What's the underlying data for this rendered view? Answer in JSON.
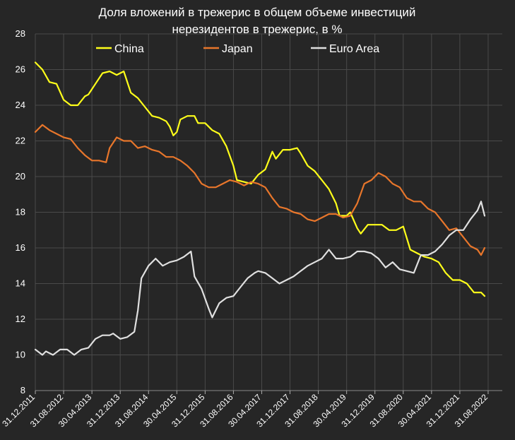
{
  "chart_data": {
    "type": "line",
    "title_line1": "Доля вложений в трежерис в общем объеме инвестиций",
    "title_line2": "нерезидентов в трежерис, в %",
    "xlabel": "",
    "ylabel": "",
    "ylim": [
      8,
      28
    ],
    "y_ticks": [
      8,
      10,
      12,
      14,
      16,
      18,
      20,
      22,
      24,
      26,
      28
    ],
    "x_tick_labels": [
      "31.12.2011",
      "31.08.2012",
      "30.04.2013",
      "31.12.2013",
      "31.08.2014",
      "30.04.2015",
      "31.12.2015",
      "31.08.2016",
      "30.04.2017",
      "31.12.2017",
      "31.08.2018",
      "30.04.2019",
      "31.12.2019",
      "31.08.2020",
      "30.04.2021",
      "31.12.2021",
      "31.08.2022"
    ],
    "x_months_per_tick": 8,
    "x_total_months": 132,
    "grid": true,
    "legend_position": "top",
    "series": [
      {
        "name": "China",
        "color": "#ffff1a",
        "points": [
          [
            0,
            26.4
          ],
          [
            2,
            26.0
          ],
          [
            4,
            25.3
          ],
          [
            6,
            25.2
          ],
          [
            8,
            24.3
          ],
          [
            10,
            24.0
          ],
          [
            12,
            24.0
          ],
          [
            14,
            24.5
          ],
          [
            15,
            24.6
          ],
          [
            17,
            25.2
          ],
          [
            19,
            25.8
          ],
          [
            21,
            25.9
          ],
          [
            23,
            25.7
          ],
          [
            25,
            25.9
          ],
          [
            27,
            24.7
          ],
          [
            29,
            24.4
          ],
          [
            31,
            23.9
          ],
          [
            33,
            23.4
          ],
          [
            35,
            23.3
          ],
          [
            37,
            23.1
          ],
          [
            38,
            22.8
          ],
          [
            39,
            22.3
          ],
          [
            40,
            22.5
          ],
          [
            41,
            23.2
          ],
          [
            43,
            23.4
          ],
          [
            45,
            23.4
          ],
          [
            46,
            23.0
          ],
          [
            48,
            23.0
          ],
          [
            50,
            22.6
          ],
          [
            52,
            22.4
          ],
          [
            54,
            21.7
          ],
          [
            56,
            20.6
          ],
          [
            57,
            19.8
          ],
          [
            59,
            19.7
          ],
          [
            61,
            19.6
          ],
          [
            63,
            20.1
          ],
          [
            65,
            20.4
          ],
          [
            67,
            21.4
          ],
          [
            68,
            21.0
          ],
          [
            70,
            21.5
          ],
          [
            72,
            21.5
          ],
          [
            74,
            21.6
          ],
          [
            75,
            21.3
          ],
          [
            77,
            20.6
          ],
          [
            79,
            20.3
          ],
          [
            81,
            19.8
          ],
          [
            83,
            19.3
          ],
          [
            85,
            18.5
          ],
          [
            86,
            17.8
          ],
          [
            88,
            17.8
          ],
          [
            89,
            18.0
          ],
          [
            91,
            17.1
          ],
          [
            92,
            16.8
          ],
          [
            94,
            17.3
          ],
          [
            96,
            17.3
          ],
          [
            98,
            17.3
          ],
          [
            100,
            17.0
          ],
          [
            102,
            17.0
          ],
          [
            104,
            17.2
          ],
          [
            106,
            15.9
          ],
          [
            108,
            15.7
          ],
          [
            110,
            15.5
          ],
          [
            112,
            15.4
          ],
          [
            114,
            15.2
          ],
          [
            116,
            14.6
          ],
          [
            118,
            14.2
          ],
          [
            120,
            14.2
          ],
          [
            122,
            14.0
          ],
          [
            124,
            13.5
          ],
          [
            126,
            13.5
          ],
          [
            127,
            13.3
          ]
        ]
      },
      {
        "name": "Japan",
        "color": "#e8762b",
        "points": [
          [
            0,
            22.5
          ],
          [
            2,
            22.9
          ],
          [
            4,
            22.6
          ],
          [
            6,
            22.4
          ],
          [
            8,
            22.2
          ],
          [
            10,
            22.1
          ],
          [
            12,
            21.6
          ],
          [
            14,
            21.2
          ],
          [
            16,
            20.9
          ],
          [
            18,
            20.9
          ],
          [
            20,
            20.8
          ],
          [
            21,
            21.6
          ],
          [
            23,
            22.2
          ],
          [
            25,
            22.0
          ],
          [
            27,
            22.0
          ],
          [
            29,
            21.6
          ],
          [
            31,
            21.7
          ],
          [
            33,
            21.5
          ],
          [
            35,
            21.4
          ],
          [
            37,
            21.1
          ],
          [
            39,
            21.1
          ],
          [
            41,
            20.9
          ],
          [
            43,
            20.6
          ],
          [
            45,
            20.2
          ],
          [
            47,
            19.6
          ],
          [
            49,
            19.4
          ],
          [
            51,
            19.4
          ],
          [
            53,
            19.6
          ],
          [
            55,
            19.8
          ],
          [
            57,
            19.7
          ],
          [
            59,
            19.5
          ],
          [
            61,
            19.7
          ],
          [
            63,
            19.6
          ],
          [
            65,
            19.4
          ],
          [
            67,
            18.8
          ],
          [
            69,
            18.3
          ],
          [
            71,
            18.2
          ],
          [
            73,
            18.0
          ],
          [
            75,
            17.9
          ],
          [
            77,
            17.6
          ],
          [
            79,
            17.5
          ],
          [
            81,
            17.7
          ],
          [
            83,
            17.9
          ],
          [
            85,
            17.9
          ],
          [
            87,
            17.7
          ],
          [
            89,
            17.8
          ],
          [
            91,
            18.5
          ],
          [
            93,
            19.6
          ],
          [
            95,
            19.8
          ],
          [
            97,
            20.2
          ],
          [
            99,
            20.0
          ],
          [
            101,
            19.6
          ],
          [
            103,
            19.4
          ],
          [
            105,
            18.8
          ],
          [
            107,
            18.6
          ],
          [
            109,
            18.6
          ],
          [
            111,
            18.2
          ],
          [
            113,
            18.0
          ],
          [
            115,
            17.5
          ],
          [
            117,
            17.0
          ],
          [
            119,
            17.1
          ],
          [
            121,
            16.6
          ],
          [
            123,
            16.1
          ],
          [
            125,
            15.9
          ],
          [
            126,
            15.6
          ],
          [
            127,
            16.0
          ]
        ]
      },
      {
        "name": "Euro Area",
        "color": "#e0e0e0",
        "points": [
          [
            0,
            10.3
          ],
          [
            2,
            10.0
          ],
          [
            3,
            10.2
          ],
          [
            5,
            10.0
          ],
          [
            7,
            10.3
          ],
          [
            9,
            10.3
          ],
          [
            11,
            10.0
          ],
          [
            13,
            10.3
          ],
          [
            15,
            10.4
          ],
          [
            17,
            10.9
          ],
          [
            19,
            11.1
          ],
          [
            21,
            11.1
          ],
          [
            22,
            11.2
          ],
          [
            24,
            10.9
          ],
          [
            26,
            11.0
          ],
          [
            28,
            11.3
          ],
          [
            29,
            12.5
          ],
          [
            30,
            14.3
          ],
          [
            32,
            15.0
          ],
          [
            34,
            15.4
          ],
          [
            36,
            15.0
          ],
          [
            38,
            15.2
          ],
          [
            40,
            15.3
          ],
          [
            42,
            15.5
          ],
          [
            44,
            15.8
          ],
          [
            45,
            14.4
          ],
          [
            47,
            13.7
          ],
          [
            49,
            12.6
          ],
          [
            50,
            12.1
          ],
          [
            52,
            12.9
          ],
          [
            54,
            13.2
          ],
          [
            56,
            13.3
          ],
          [
            58,
            13.8
          ],
          [
            60,
            14.3
          ],
          [
            62,
            14.6
          ],
          [
            63,
            14.7
          ],
          [
            65,
            14.6
          ],
          [
            67,
            14.3
          ],
          [
            69,
            14.0
          ],
          [
            71,
            14.2
          ],
          [
            73,
            14.4
          ],
          [
            75,
            14.7
          ],
          [
            77,
            15.0
          ],
          [
            79,
            15.2
          ],
          [
            81,
            15.4
          ],
          [
            83,
            15.9
          ],
          [
            85,
            15.4
          ],
          [
            87,
            15.4
          ],
          [
            89,
            15.5
          ],
          [
            91,
            15.8
          ],
          [
            93,
            15.8
          ],
          [
            95,
            15.7
          ],
          [
            97,
            15.4
          ],
          [
            99,
            14.9
          ],
          [
            101,
            15.2
          ],
          [
            103,
            14.8
          ],
          [
            105,
            14.7
          ],
          [
            107,
            14.6
          ],
          [
            109,
            15.6
          ],
          [
            111,
            15.6
          ],
          [
            113,
            15.8
          ],
          [
            115,
            16.2
          ],
          [
            117,
            16.7
          ],
          [
            119,
            17.0
          ],
          [
            121,
            17.0
          ],
          [
            123,
            17.6
          ],
          [
            125,
            18.1
          ],
          [
            126,
            18.6
          ],
          [
            127,
            17.8
          ]
        ]
      }
    ]
  }
}
